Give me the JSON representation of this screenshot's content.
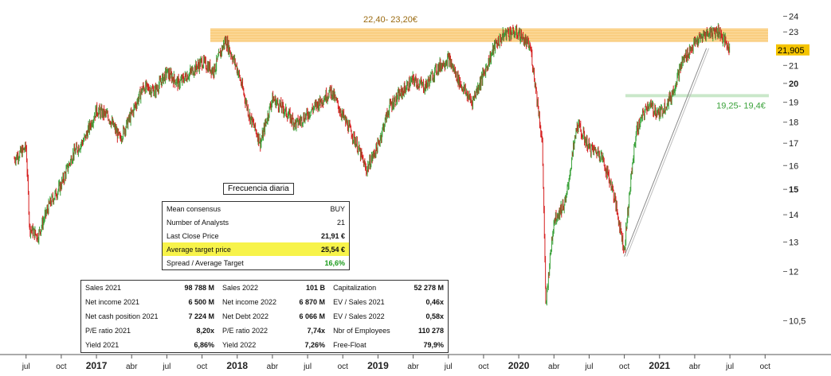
{
  "chart_data": {
    "type": "candlestick",
    "y_scale": "log",
    "ylim": [
      10.0,
      24.6
    ],
    "y_ticks": [
      "24",
      "23",
      "22",
      "21",
      "20",
      "19",
      "18",
      "17",
      "16",
      "15",
      "14",
      "13",
      "12",
      "10,5"
    ],
    "x_ticks": [
      "jul",
      "oct",
      "2017",
      "abr",
      "jul",
      "oct",
      "2018",
      "abr",
      "jul",
      "oct",
      "2019",
      "abr",
      "jul",
      "oct",
      "2020",
      "abr",
      "jul",
      "oct",
      "2021",
      "abr",
      "jul",
      "oct"
    ],
    "last_price_label": "21,905",
    "last_price": 21.905,
    "resistance_zone": {
      "label": "22,40- 23,20€",
      "low": 22.4,
      "high": 23.2
    },
    "support_zone": {
      "label": "19,25- 19,4€",
      "low": 19.25,
      "high": 19.4
    },
    "trendline": {
      "from": [
        "2020-10",
        12.5
      ],
      "to": [
        "2021-05",
        22.0
      ]
    },
    "series": [
      {
        "points": [
          [
            "2016-06",
            16.3
          ],
          [
            "2016-07",
            16.8
          ],
          [
            "2016-07",
            13.5
          ],
          [
            "2016-08",
            13.2
          ],
          [
            "2016-09",
            14.4
          ],
          [
            "2016-10",
            15.2
          ],
          [
            "2016-11",
            16.5
          ],
          [
            "2016-12",
            17.2
          ],
          [
            "2017-01",
            18.6
          ],
          [
            "2017-02",
            18.3
          ],
          [
            "2017-03",
            17.2
          ],
          [
            "2017-04",
            18.4
          ],
          [
            "2017-05",
            19.8
          ],
          [
            "2017-06",
            19.6
          ],
          [
            "2017-07",
            20.6
          ],
          [
            "2017-08",
            20.0
          ],
          [
            "2017-09",
            20.6
          ],
          [
            "2017-10",
            21.2
          ],
          [
            "2017-11",
            20.7
          ],
          [
            "2017-12",
            22.5
          ],
          [
            "2018-01",
            20.8
          ],
          [
            "2018-02",
            18.4
          ],
          [
            "2018-03",
            17.0
          ],
          [
            "2018-04",
            19.2
          ],
          [
            "2018-05",
            18.6
          ],
          [
            "2018-06",
            17.9
          ],
          [
            "2018-07",
            18.4
          ],
          [
            "2018-08",
            19.0
          ],
          [
            "2018-09",
            19.6
          ],
          [
            "2018-10",
            18.3
          ],
          [
            "2018-11",
            17.2
          ],
          [
            "2018-12",
            15.8
          ],
          [
            "2019-01",
            16.9
          ],
          [
            "2019-02",
            18.8
          ],
          [
            "2019-03",
            19.5
          ],
          [
            "2019-04",
            20.2
          ],
          [
            "2019-05",
            19.8
          ],
          [
            "2019-06",
            20.8
          ],
          [
            "2019-07",
            21.4
          ],
          [
            "2019-08",
            20.0
          ],
          [
            "2019-09",
            19.0
          ],
          [
            "2019-10",
            20.5
          ],
          [
            "2019-11",
            22.2
          ],
          [
            "2019-12",
            23.0
          ],
          [
            "2020-01",
            22.9
          ],
          [
            "2020-02",
            22.0
          ],
          [
            "2020-03",
            17.0
          ],
          [
            "2020-03",
            10.9
          ],
          [
            "2020-04",
            13.8
          ],
          [
            "2020-05",
            14.5
          ],
          [
            "2020-06",
            17.9
          ],
          [
            "2020-07",
            16.8
          ],
          [
            "2020-08",
            16.5
          ],
          [
            "2020-09",
            15.0
          ],
          [
            "2020-10",
            12.7
          ],
          [
            "2020-11",
            17.5
          ],
          [
            "2020-12",
            18.9
          ],
          [
            "2021-01",
            18.4
          ],
          [
            "2021-02",
            19.3
          ],
          [
            "2021-03",
            21.3
          ],
          [
            "2021-04",
            22.3
          ],
          [
            "2021-05",
            22.9
          ],
          [
            "2021-06",
            23.1
          ],
          [
            "2021-07",
            21.9
          ]
        ]
      }
    ]
  },
  "labels": {
    "frequency": "Frecuencia diaria"
  },
  "consensus": [
    {
      "label": "Mean consensus",
      "value": "BUY"
    },
    {
      "label": "Number of Analysts",
      "value": "21"
    },
    {
      "label": "Last Close Price",
      "value": "21,91 €"
    },
    {
      "label": "Average target price",
      "value": "25,54 €"
    },
    {
      "label": "Spread / Average Target",
      "value": "16,6%"
    }
  ],
  "fundamentals": [
    {
      "l1": "Sales 2021",
      "v1": "98 788 M",
      "l2": "Sales 2022",
      "v2": "101 B",
      "l3": "Capitalization",
      "v3": "52 278 M"
    },
    {
      "l1": "Net income 2021",
      "v1": "6 500 M",
      "l2": "Net income 2022",
      "v2": "6 870 M",
      "l3": "EV / Sales 2021",
      "v3": "0,46x"
    },
    {
      "l1": "Net cash position 2021",
      "v1": "7 224 M",
      "l2": "Net Debt 2022",
      "v2": "6 066 M",
      "l3": "EV / Sales 2022",
      "v3": "0,58x"
    },
    {
      "l1": "P/E ratio 2021",
      "v1": "8,20x",
      "l2": "P/E ratio 2022",
      "v2": "7,74x",
      "l3": "Nbr of Employees",
      "v3": "110 278"
    },
    {
      "l1": "Yield 2021",
      "v1": "6,86%",
      "l2": "Yield 2022",
      "v2": "7,26%",
      "l3": "Free-Float",
      "v3": "79,9%"
    }
  ],
  "colors": {
    "up": "#3aa23a",
    "down": "#d62020",
    "resistance": "#f5a623",
    "support": "#7cc47c",
    "price_label": "#f5c400",
    "grid_text": "#222222"
  }
}
